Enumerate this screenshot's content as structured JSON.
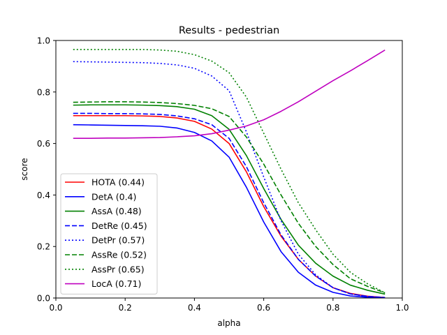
{
  "chart_data": {
    "type": "line",
    "title": "Results - pedestrian",
    "xlabel": "alpha",
    "ylabel": "score",
    "xlim": [
      0.0,
      1.0
    ],
    "ylim": [
      0.0,
      1.0
    ],
    "xticks": [
      "0.0",
      "0.2",
      "0.4",
      "0.6",
      "0.8",
      "1.0"
    ],
    "yticks": [
      "0.0",
      "0.2",
      "0.4",
      "0.6",
      "0.8",
      "1.0"
    ],
    "grid": false,
    "legend_position": "lower-left",
    "x": [
      0.05,
      0.1,
      0.15,
      0.2,
      0.25,
      0.3,
      0.35,
      0.4,
      0.45,
      0.5,
      0.55,
      0.6,
      0.65,
      0.7,
      0.75,
      0.8,
      0.85,
      0.9,
      0.95
    ],
    "series": [
      {
        "name": "HOTA (0.44)",
        "color": "#ff0000",
        "dash": "solid",
        "values": [
          0.708,
          0.708,
          0.708,
          0.708,
          0.707,
          0.705,
          0.699,
          0.686,
          0.656,
          0.6,
          0.49,
          0.355,
          0.24,
          0.15,
          0.085,
          0.04,
          0.018,
          0.007,
          0.002
        ]
      },
      {
        "name": "DetA (0.4)",
        "color": "#0000ff",
        "dash": "solid",
        "values": [
          0.673,
          0.672,
          0.671,
          0.67,
          0.669,
          0.667,
          0.66,
          0.643,
          0.61,
          0.547,
          0.43,
          0.295,
          0.18,
          0.1,
          0.05,
          0.022,
          0.008,
          0.003,
          0.001
        ]
      },
      {
        "name": "AssA (0.48)",
        "color": "#008000",
        "dash": "solid",
        "values": [
          0.749,
          0.75,
          0.75,
          0.75,
          0.749,
          0.747,
          0.743,
          0.733,
          0.708,
          0.655,
          0.553,
          0.425,
          0.305,
          0.205,
          0.135,
          0.085,
          0.05,
          0.03,
          0.015
        ]
      },
      {
        "name": "DetRe (0.45)",
        "color": "#0000ff",
        "dash": "dashed",
        "values": [
          0.717,
          0.717,
          0.716,
          0.716,
          0.715,
          0.713,
          0.707,
          0.696,
          0.673,
          0.62,
          0.51,
          0.37,
          0.245,
          0.15,
          0.085,
          0.04,
          0.016,
          0.006,
          0.002
        ]
      },
      {
        "name": "DetPr (0.57)",
        "color": "#0000ff",
        "dash": "dotted",
        "values": [
          0.918,
          0.917,
          0.916,
          0.915,
          0.914,
          0.911,
          0.905,
          0.892,
          0.862,
          0.805,
          0.645,
          0.47,
          0.3,
          0.17,
          0.09,
          0.04,
          0.016,
          0.006,
          0.002
        ]
      },
      {
        "name": "AssRe (0.52)",
        "color": "#008000",
        "dash": "dashed",
        "values": [
          0.76,
          0.761,
          0.762,
          0.762,
          0.761,
          0.759,
          0.755,
          0.748,
          0.735,
          0.705,
          0.625,
          0.52,
          0.4,
          0.29,
          0.2,
          0.13,
          0.075,
          0.045,
          0.02
        ]
      },
      {
        "name": "AssPr (0.65)",
        "color": "#008000",
        "dash": "dotted",
        "values": [
          0.965,
          0.965,
          0.965,
          0.965,
          0.965,
          0.963,
          0.958,
          0.945,
          0.92,
          0.875,
          0.78,
          0.64,
          0.5,
          0.37,
          0.265,
          0.17,
          0.1,
          0.055,
          0.02
        ]
      },
      {
        "name": "LocA (0.71)",
        "color": "#bf00bf",
        "dash": "solid",
        "values": [
          0.62,
          0.62,
          0.621,
          0.621,
          0.622,
          0.623,
          0.626,
          0.63,
          0.638,
          0.652,
          0.668,
          0.692,
          0.725,
          0.762,
          0.803,
          0.844,
          0.882,
          0.922,
          0.963
        ]
      }
    ]
  }
}
